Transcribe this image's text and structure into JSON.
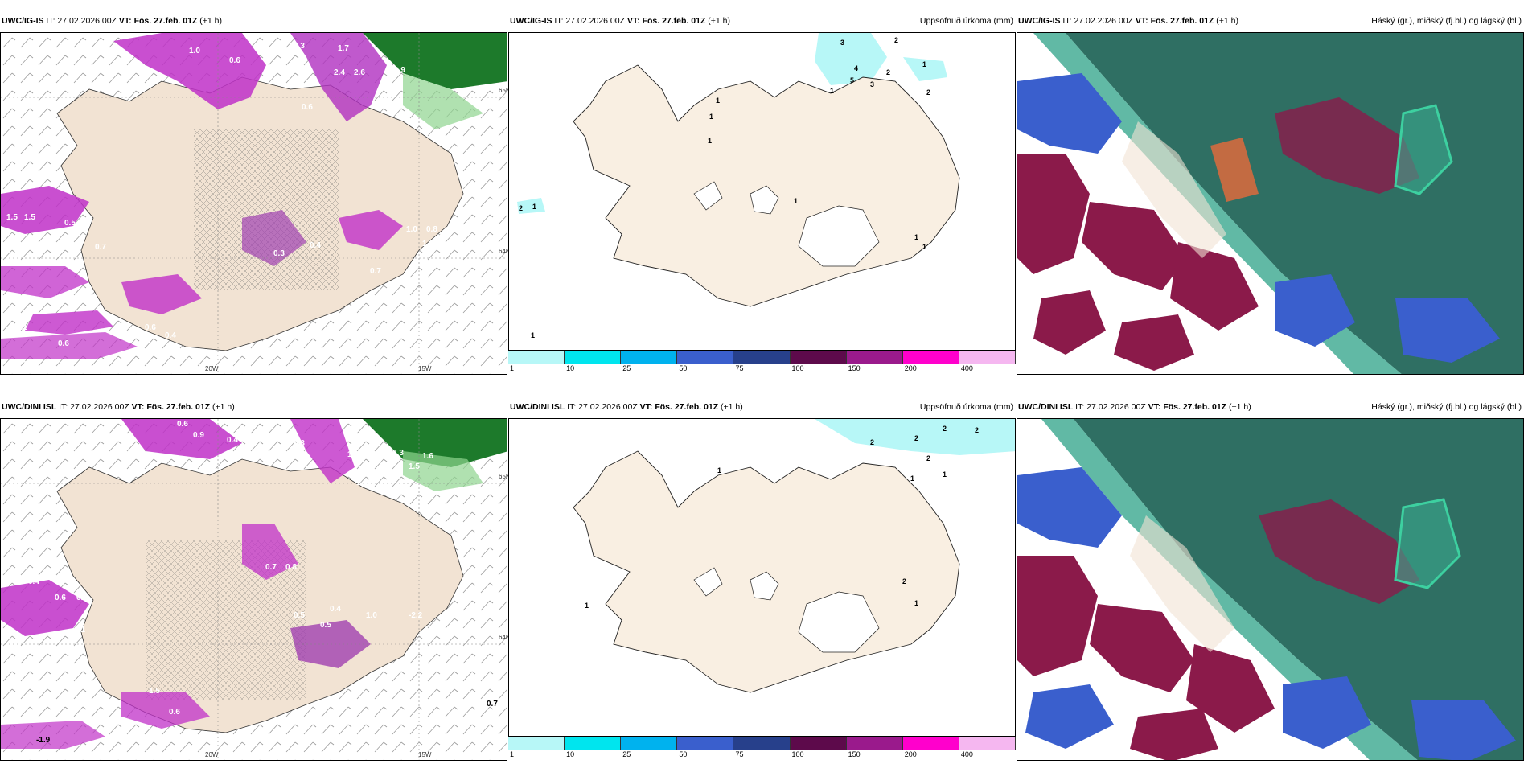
{
  "panels": {
    "p1": {
      "model": "UWC/IG-IS",
      "it": "IT: 27.02.2026 00Z",
      "vt": "VT: Fös. 27.feb. 01Z",
      "step": "(+1 h)",
      "right": "",
      "lat1": "65N",
      "lat2": "64N",
      "lon1": "20W",
      "lon2": "15W"
    },
    "p2": {
      "model": "UWC/IG-IS",
      "it": "IT: 27.02.2026 00Z",
      "vt": "VT: Fös. 27.feb. 01Z",
      "step": "(+1 h)",
      "right": "Uppsöfnuð úrkoma (mm)"
    },
    "p3": {
      "model": "UWC/IG-IS",
      "it": "IT: 27.02.2026 00Z",
      "vt": "VT: Fös. 27.feb. 01Z",
      "step": "(+1 h)",
      "right": "Háský (gr.), miðský (fj.bl.) og lágský (bl.)"
    },
    "p4": {
      "model": "UWC/DINI ISL",
      "it": "IT: 27.02.2026 00Z",
      "vt": "VT: Fös. 27.feb. 01Z",
      "step": "(+1 h)",
      "right": "",
      "lat1": "65N",
      "lat2": "64N",
      "lon1": "20W",
      "lon2": "15W"
    },
    "p5": {
      "model": "UWC/DINI ISL",
      "it": "IT: 27.02.2026 00Z",
      "vt": "VT: Fös. 27.feb. 01Z",
      "step": "(+1 h)",
      "right": "Uppsöfnuð úrkoma (mm)"
    },
    "p6": {
      "model": "UWC/DINI ISL",
      "it": "IT: 27.02.2026 00Z",
      "vt": "VT: Fös. 27.feb. 01Z",
      "step": "(+1 h)",
      "right": "Háský (gr.), miðský (fj.bl.) og lágský (bl.)"
    }
  },
  "colorbar": {
    "labels": [
      "1",
      "10",
      "25",
      "50",
      "75",
      "100",
      "150",
      "200",
      "400"
    ],
    "colors": [
      "#b7f7f7",
      "#00e5ee",
      "#00b2ee",
      "#3a5fcd",
      "#27408b",
      "#5d0a4b",
      "#9a1a8c",
      "#ff00cc",
      "#f5b7f0"
    ]
  },
  "precip_labels": {
    "p1": [
      "1.0",
      "0.6",
      "0.3",
      "1.7",
      "2.4",
      "2.6",
      "0.9",
      "0.6",
      "1.5",
      "1.5",
      "0.5",
      "0.7",
      "0.6",
      "0.3",
      "0.4",
      "1.1",
      "0.6",
      "0.6",
      "0.4",
      "0.7",
      "1.0",
      "0.8",
      "1.2",
      "0.7",
      "0.4",
      "1.1"
    ],
    "p2": [
      "1",
      "1",
      "1",
      "2",
      "4",
      "5",
      "3",
      "2",
      "1",
      "2",
      "3",
      "1",
      "2",
      "1",
      "1",
      "1",
      "1",
      "1"
    ],
    "p4": [
      "0.6",
      "0.9",
      "0.4",
      "0.3",
      "1.3",
      "2.3",
      "1.6",
      "1.5",
      "1.8",
      "0.4",
      "0.6",
      "0.4",
      "1.1",
      "0.8",
      "0.7",
      "0.5",
      "1.0",
      "-2.2",
      "0.4",
      "0.5",
      "1.5",
      "0.6",
      "-1.9",
      "0.7"
    ],
    "p5": [
      "2",
      "2",
      "2",
      "2",
      "1",
      "2",
      "1",
      "1",
      "1",
      "1",
      "2"
    ]
  },
  "colors": {
    "land": "#f2e3d3",
    "land_lowerleft": "#ede0d0",
    "precip_purple": "#c030c8",
    "precip_dark": "#7a2a8a",
    "green": "#2e8b3e",
    "cloud_high": "#2f6f63",
    "cloud_mid": "#8b1a4a",
    "cloud_low": "#3a5fcd"
  }
}
